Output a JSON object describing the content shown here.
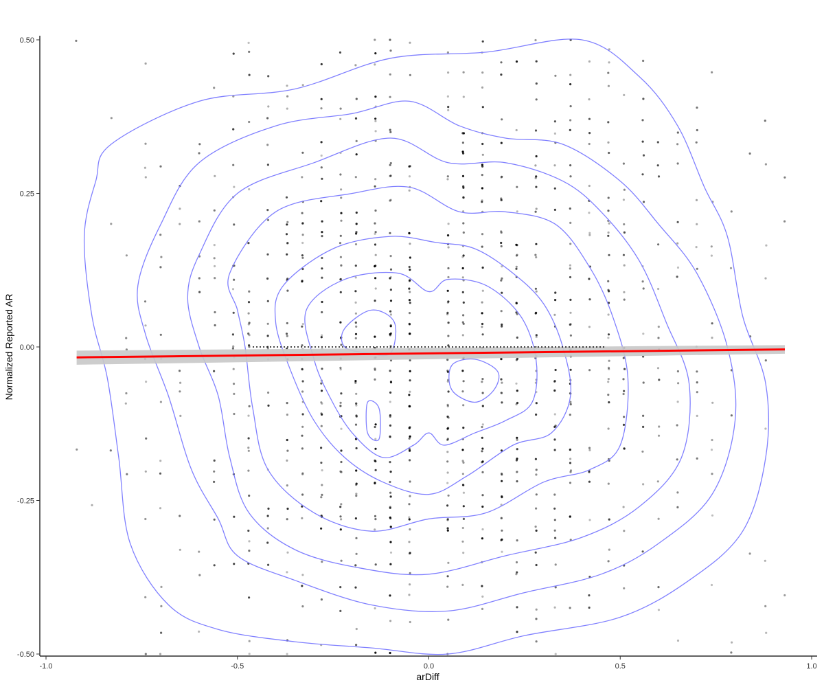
{
  "chart_data": {
    "type": "scatter",
    "xlabel": "arDiff",
    "ylabel": "Normalized Reported AR",
    "xlim": [
      -1.0,
      1.0
    ],
    "ylim": [
      -0.5,
      0.5
    ],
    "x_ticks": [
      "-1.0",
      "-0.5",
      "0.0",
      "0.5",
      "1.0"
    ],
    "y_ticks": [
      "0.50",
      "0.25",
      "0.00",
      "-0.25",
      "-0.50"
    ],
    "grid": false,
    "legend": "none",
    "points": {
      "color": "#000000",
      "x_columns": [
        -0.92,
        -0.88,
        -0.83,
        -0.79,
        -0.74,
        -0.7,
        -0.65,
        -0.6,
        -0.56,
        -0.51,
        -0.47,
        -0.42,
        -0.37,
        -0.33,
        -0.28,
        -0.23,
        -0.19,
        -0.14,
        -0.1,
        -0.05,
        0.05,
        0.09,
        0.14,
        0.19,
        0.23,
        0.28,
        0.33,
        0.37,
        0.42,
        0.47,
        0.51,
        0.56,
        0.6,
        0.65,
        0.7,
        0.74,
        0.79,
        0.84,
        0.88,
        0.93
      ],
      "y_spacing": 0.0185,
      "y_jitter": 0.004
    },
    "regression": {
      "color": "#ff0000",
      "band_color": "#c8c8c8",
      "x": [
        -0.92,
        0.93
      ],
      "y": [
        -0.017,
        -0.004
      ],
      "se_low": [
        -0.029,
        -0.011
      ],
      "se_high": [
        -0.006,
        0.003
      ]
    },
    "reference_line": {
      "x": [
        -0.46,
        0.46
      ],
      "y": 0.0,
      "style": "dotted",
      "color": "#000000"
    },
    "density_contours": {
      "color": "#8080ff",
      "levels": [
        [
          [
            -0.83,
            0.33
          ],
          [
            -0.6,
            0.4
          ],
          [
            -0.35,
            0.42
          ],
          [
            -0.1,
            0.47
          ],
          [
            0.15,
            0.48
          ],
          [
            0.4,
            0.5
          ],
          [
            0.55,
            0.44
          ],
          [
            0.65,
            0.36
          ],
          [
            0.72,
            0.26
          ],
          [
            0.78,
            0.18
          ],
          [
            0.82,
            0.05
          ],
          [
            0.88,
            -0.06
          ],
          [
            0.88,
            -0.18
          ],
          [
            0.82,
            -0.3
          ],
          [
            0.68,
            -0.38
          ],
          [
            0.5,
            -0.44
          ],
          [
            0.25,
            -0.47
          ],
          [
            0.05,
            -0.5
          ],
          [
            -0.15,
            -0.49
          ],
          [
            -0.35,
            -0.48
          ],
          [
            -0.55,
            -0.46
          ],
          [
            -0.68,
            -0.42
          ],
          [
            -0.78,
            -0.32
          ],
          [
            -0.81,
            -0.18
          ],
          [
            -0.84,
            -0.05
          ],
          [
            -0.88,
            0.05
          ],
          [
            -0.9,
            0.18
          ],
          [
            -0.87,
            0.27
          ]
        ],
        [
          [
            -0.7,
            0.2
          ],
          [
            -0.6,
            0.3
          ],
          [
            -0.4,
            0.36
          ],
          [
            -0.2,
            0.38
          ],
          [
            -0.05,
            0.4
          ],
          [
            0.08,
            0.36
          ],
          [
            0.2,
            0.34
          ],
          [
            0.35,
            0.33
          ],
          [
            0.5,
            0.27
          ],
          [
            0.6,
            0.2
          ],
          [
            0.7,
            0.12
          ],
          [
            0.78,
            0.0
          ],
          [
            0.8,
            -0.12
          ],
          [
            0.74,
            -0.24
          ],
          [
            0.6,
            -0.32
          ],
          [
            0.45,
            -0.37
          ],
          [
            0.25,
            -0.4
          ],
          [
            0.05,
            -0.43
          ],
          [
            -0.15,
            -0.42
          ],
          [
            -0.35,
            -0.38
          ],
          [
            -0.5,
            -0.34
          ],
          [
            -0.55,
            -0.28
          ],
          [
            -0.62,
            -0.2
          ],
          [
            -0.68,
            -0.08
          ],
          [
            -0.74,
            0.02
          ],
          [
            -0.76,
            0.1
          ]
        ],
        [
          [
            -0.6,
            0.15
          ],
          [
            -0.5,
            0.25
          ],
          [
            -0.3,
            0.3
          ],
          [
            -0.1,
            0.34
          ],
          [
            0.05,
            0.3
          ],
          [
            0.2,
            0.3
          ],
          [
            0.35,
            0.27
          ],
          [
            0.45,
            0.22
          ],
          [
            0.55,
            0.14
          ],
          [
            0.62,
            0.04
          ],
          [
            0.68,
            -0.06
          ],
          [
            0.66,
            -0.18
          ],
          [
            0.55,
            -0.26
          ],
          [
            0.4,
            -0.31
          ],
          [
            0.2,
            -0.34
          ],
          [
            0.0,
            -0.37
          ],
          [
            -0.18,
            -0.36
          ],
          [
            -0.35,
            -0.33
          ],
          [
            -0.47,
            -0.27
          ],
          [
            -0.52,
            -0.18
          ],
          [
            -0.55,
            -0.08
          ],
          [
            -0.6,
            0.0
          ],
          [
            -0.63,
            0.08
          ]
        ],
        [
          [
            -0.52,
            0.12
          ],
          [
            -0.4,
            0.22
          ],
          [
            -0.2,
            0.25
          ],
          [
            -0.05,
            0.26
          ],
          [
            0.08,
            0.22
          ],
          [
            0.2,
            0.22
          ],
          [
            0.33,
            0.2
          ],
          [
            0.42,
            0.13
          ],
          [
            0.48,
            0.05
          ],
          [
            0.52,
            -0.05
          ],
          [
            0.5,
            -0.16
          ],
          [
            0.42,
            -0.2
          ],
          [
            0.3,
            -0.22
          ],
          [
            0.15,
            -0.27
          ],
          [
            0.0,
            -0.28
          ],
          [
            -0.15,
            -0.3
          ],
          [
            -0.3,
            -0.27
          ],
          [
            -0.42,
            -0.2
          ],
          [
            -0.46,
            -0.1
          ],
          [
            -0.48,
            0.0
          ],
          [
            -0.5,
            0.06
          ]
        ],
        [
          [
            -0.38,
            0.1
          ],
          [
            -0.25,
            0.16
          ],
          [
            -0.1,
            0.18
          ],
          [
            0.02,
            0.17
          ],
          [
            0.12,
            0.16
          ],
          [
            0.22,
            0.12
          ],
          [
            0.3,
            0.07
          ],
          [
            0.35,
            0.0
          ],
          [
            0.37,
            -0.08
          ],
          [
            0.32,
            -0.14
          ],
          [
            0.22,
            -0.16
          ],
          [
            0.1,
            -0.21
          ],
          [
            0.0,
            -0.24
          ],
          [
            -0.12,
            -0.22
          ],
          [
            -0.22,
            -0.18
          ],
          [
            -0.3,
            -0.12
          ],
          [
            -0.36,
            -0.04
          ],
          [
            -0.4,
            0.04
          ]
        ],
        [
          [
            -0.32,
            0.06
          ],
          [
            -0.22,
            0.11
          ],
          [
            -0.08,
            0.12
          ],
          [
            0.0,
            0.09
          ],
          [
            0.05,
            0.11
          ],
          [
            0.15,
            0.1
          ],
          [
            0.24,
            0.05
          ],
          [
            0.28,
            -0.02
          ],
          [
            0.27,
            -0.09
          ],
          [
            0.2,
            -0.12
          ],
          [
            0.12,
            -0.14
          ],
          [
            0.04,
            -0.16
          ],
          [
            0.0,
            -0.14
          ],
          [
            -0.04,
            -0.16
          ],
          [
            -0.12,
            -0.18
          ],
          [
            -0.2,
            -0.14
          ],
          [
            -0.26,
            -0.08
          ],
          [
            -0.3,
            -0.02
          ]
        ],
        [
          [
            -0.22,
            0.03
          ],
          [
            -0.15,
            0.06
          ],
          [
            -0.09,
            0.04
          ],
          [
            -0.1,
            -0.01
          ],
          [
            -0.16,
            -0.01
          ],
          [
            -0.22,
            0.0
          ]
        ],
        [
          [
            0.06,
            -0.03
          ],
          [
            0.12,
            -0.02
          ],
          [
            0.18,
            -0.04
          ],
          [
            0.17,
            -0.07
          ],
          [
            0.12,
            -0.09
          ],
          [
            0.06,
            -0.07
          ]
        ],
        [
          [
            -0.16,
            -0.09
          ],
          [
            -0.13,
            -0.1
          ],
          [
            -0.13,
            -0.15
          ],
          [
            -0.16,
            -0.14
          ]
        ]
      ]
    }
  }
}
